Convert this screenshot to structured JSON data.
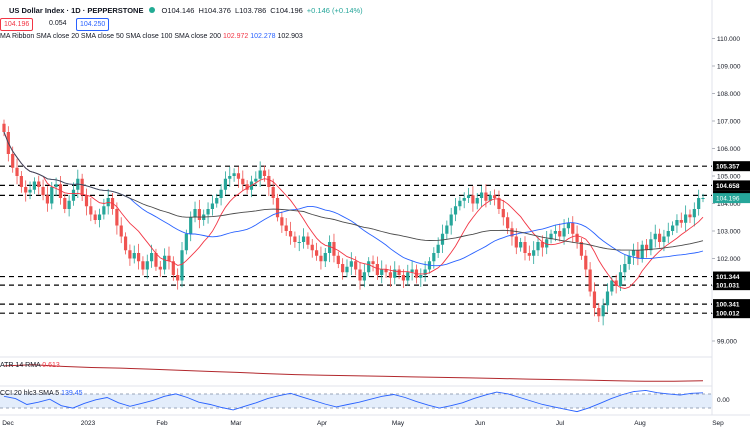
{
  "header": {
    "symbol": "US Dollar Index · 1D · PEPPERSTONE",
    "open": "O104.146",
    "high": "H104.376",
    "low": "L103.786",
    "close": "C104.196",
    "change": "+0.146 (+0.14%)",
    "sell_price": "104.196",
    "spread": "0.054",
    "buy_price": "104.250"
  },
  "indicators": {
    "ma_ribbon_label": "MA Ribbon SMA close 20 SMA close 50 SMA close 100 SMA close 200",
    "ma_val_1": "102.972",
    "ma_val_2": "102.278",
    "ma_val_3": "102.903",
    "atr_label": "ATR 14 RMA",
    "atr_value": "0.613",
    "cci_label": "CCI 20 hlc3 SMA 5",
    "cci_value": "139.45"
  },
  "colors": {
    "up": "#26a69a",
    "down": "#ef5350",
    "sma20": "#f23645",
    "sma50": "#2962ff",
    "sma100": "#4a4a4a",
    "atr": "#b2282d",
    "cci": "#2962ff",
    "cci_band": "#e3edfb",
    "current_price_label": "#26a69a"
  },
  "chart_data": {
    "type": "candlestick",
    "y_axis_ticks": [
      "110.000",
      "109.000",
      "108.000",
      "107.000",
      "106.000",
      "105.000",
      "104.000",
      "103.000",
      "102.000",
      "101.000",
      "100.000",
      "99.000"
    ],
    "x_axis_ticks": [
      "Dec",
      "2023",
      "Feb",
      "Mar",
      "Apr",
      "May",
      "Jun",
      "Jul",
      "Aug",
      "Sep"
    ],
    "ylim": [
      98.6,
      110.6
    ],
    "horizontal_levels": [
      {
        "value": 105.357,
        "label": "105.357"
      },
      {
        "value": 104.658,
        "label": "104.658"
      },
      {
        "value": 104.295,
        "label": "104.295"
      },
      {
        "value": 101.344,
        "label": "101.344"
      },
      {
        "value": 101.031,
        "label": "101.031"
      },
      {
        "value": 100.341,
        "label": "100.341"
      },
      {
        "value": 100.012,
        "label": "100.012"
      }
    ],
    "current_price": {
      "value": 104.196,
      "label": "104.196"
    },
    "sma_labels": [
      "SMA 20",
      "SMA 50",
      "SMA 100"
    ],
    "candles_close": [
      106.6,
      105.8,
      105.3,
      105.0,
      104.6,
      104.4,
      104.5,
      104.8,
      104.6,
      104.3,
      104.0,
      104.6,
      104.7,
      104.2,
      103.8,
      104.1,
      104.5,
      104.9,
      104.3,
      103.9,
      103.6,
      103.4,
      103.6,
      103.9,
      104.2,
      103.8,
      103.2,
      102.8,
      102.3,
      102.0,
      102.2,
      101.9,
      101.6,
      101.9,
      102.2,
      101.7,
      101.6,
      102.1,
      101.9,
      101.4,
      101.2,
      102.3,
      102.9,
      103.5,
      103.8,
      103.4,
      103.6,
      103.8,
      104.0,
      104.2,
      104.5,
      104.9,
      105.0,
      105.1,
      104.9,
      104.7,
      104.5,
      104.8,
      104.9,
      105.2,
      105.0,
      104.6,
      104.2,
      103.5,
      103.2,
      103.0,
      102.8,
      102.6,
      102.6,
      102.8,
      102.5,
      102.3,
      102.1,
      101.9,
      102.2,
      102.6,
      102.1,
      101.8,
      101.5,
      101.7,
      101.9,
      101.6,
      101.2,
      101.5,
      101.9,
      101.8,
      101.4,
      101.6,
      101.5,
      101.3,
      101.6,
      101.4,
      101.2,
      101.5,
      101.6,
      101.3,
      101.4,
      101.6,
      101.9,
      102.2,
      102.5,
      102.9,
      103.2,
      103.6,
      103.9,
      104.1,
      104.2,
      104.3,
      104.0,
      104.2,
      104.4,
      104.1,
      104.3,
      104.2,
      103.8,
      103.5,
      103.1,
      102.8,
      102.4,
      102.6,
      102.2,
      102.1,
      102.3,
      102.6,
      102.4,
      102.7,
      102.9,
      103.0,
      102.8,
      103.1,
      103.3,
      102.9,
      102.6,
      102.1,
      101.6,
      100.8,
      100.2,
      99.9,
      100.3,
      100.8,
      101.2,
      101.0,
      101.5,
      101.8,
      102.1,
      102.3,
      102.0,
      102.5,
      102.3,
      102.7,
      102.9,
      102.6,
      102.8,
      103.0,
      103.2,
      103.4,
      103.3,
      103.6,
      103.5,
      103.8,
      104.2,
      104.2
    ],
    "atr_values": [
      0.88,
      0.9,
      0.87,
      0.85,
      0.84,
      0.82,
      0.8,
      0.78,
      0.76,
      0.74,
      0.72,
      0.71,
      0.7,
      0.69,
      0.68,
      0.67,
      0.66,
      0.65,
      0.64,
      0.63,
      0.62,
      0.61,
      0.6,
      0.6,
      0.61
    ],
    "cci_values": [
      80,
      40,
      -60,
      -20,
      30,
      -80,
      -120,
      -40,
      20,
      60,
      -30,
      -90,
      -40,
      10,
      80,
      120,
      60,
      -20,
      -60,
      -110,
      -150,
      -90,
      -30,
      40,
      90,
      130,
      70,
      10,
      -50,
      -100,
      -60,
      -20,
      30,
      80,
      110,
      60,
      -10,
      -70,
      -120,
      -80,
      -30,
      40,
      100,
      150,
      120,
      60,
      0,
      -60,
      -100,
      -140,
      -180,
      -120,
      -40,
      40,
      110,
      160,
      180,
      140,
      120,
      100,
      130,
      139
    ]
  }
}
